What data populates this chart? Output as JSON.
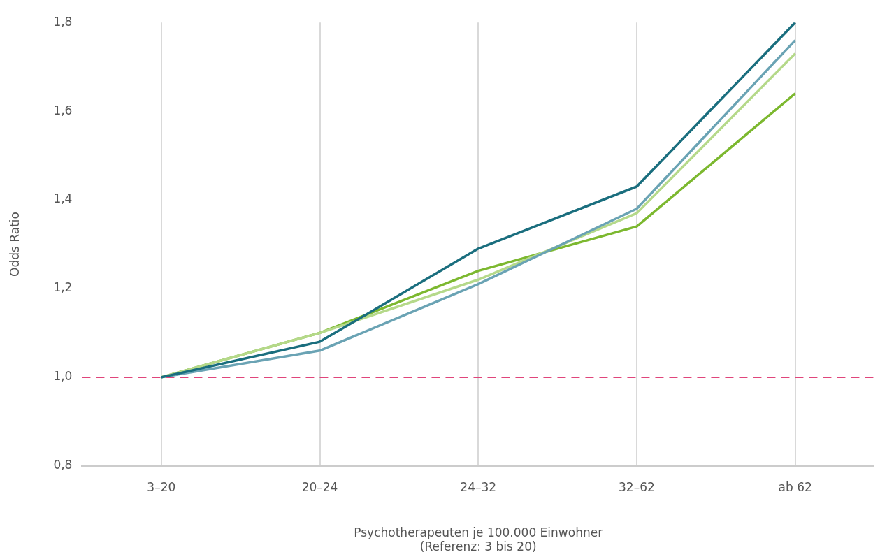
{
  "chart_data": {
    "type": "line",
    "xlabel": "Psychotherapeuten je 100.000 Einwohner\n(Referenz: 3 bis 20)",
    "ylabel": "Odds Ratio",
    "categories": [
      "3–20",
      "20–24",
      "24–32",
      "32–62",
      "ab 62"
    ],
    "series": [
      {
        "color": "#1a6e7e",
        "values": [
          1.0,
          1.08,
          1.29,
          1.43,
          1.8
        ]
      },
      {
        "color": "#6aa3b4",
        "values": [
          1.0,
          1.06,
          1.21,
          1.38,
          1.76
        ]
      },
      {
        "color": "#b5d98a",
        "values": [
          1.0,
          1.1,
          1.22,
          1.37,
          1.73
        ]
      },
      {
        "color": "#7cb82f",
        "values": [
          1.0,
          1.1,
          1.24,
          1.34,
          1.64
        ]
      }
    ],
    "ylim": [
      0.8,
      1.8
    ],
    "yticks": [
      {
        "value": 0.8,
        "label": "0,8"
      },
      {
        "value": 1.0,
        "label": "1,0"
      },
      {
        "value": 1.2,
        "label": "1,2"
      },
      {
        "value": 1.4,
        "label": "1,4"
      },
      {
        "value": 1.6,
        "label": "1,6"
      },
      {
        "value": 1.8,
        "label": "1,8"
      }
    ],
    "ref_lines": [
      {
        "axis": "y",
        "value": 1.0,
        "label": null,
        "color": "#e0457b",
        "line_style": "dashed"
      }
    ],
    "grid": "x",
    "legend": false,
    "marker": "none",
    "line_style": "solid"
  }
}
